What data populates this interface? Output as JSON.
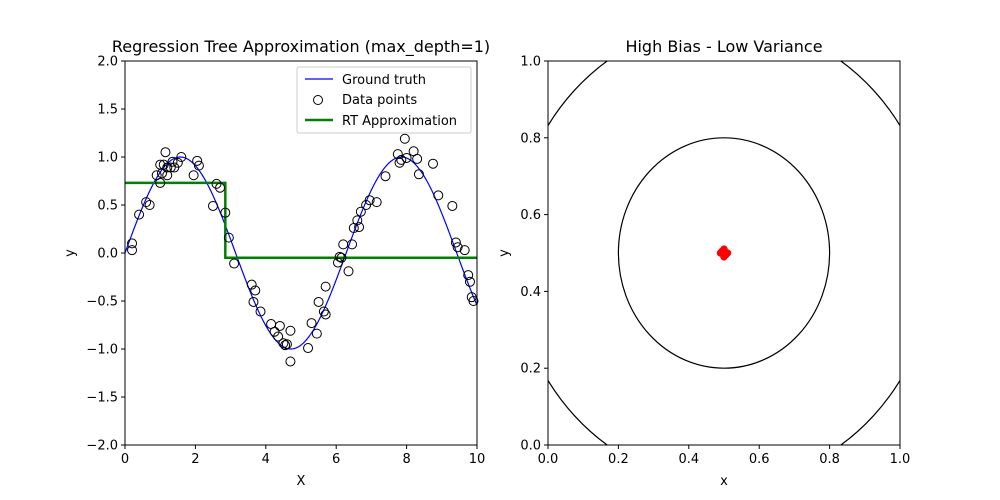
{
  "chart_data": [
    {
      "type": "line",
      "title": "Regression Tree Approximation (max_depth=1)",
      "xlabel": "X",
      "ylabel": "y",
      "xlim": [
        0,
        10
      ],
      "ylim": [
        -2.0,
        2.0
      ],
      "xticks": [
        "0",
        "2",
        "4",
        "6",
        "8",
        "10"
      ],
      "yticks": [
        "−2.0",
        "−1.5",
        "−1.0",
        "−0.5",
        "0.0",
        "0.5",
        "1.0",
        "1.5",
        "2.0"
      ],
      "grid": false,
      "legend": "top-right",
      "series": [
        {
          "name": "Ground truth",
          "kind": "line",
          "color": "#0000ff",
          "function": "sin(x)",
          "x_range": [
            0,
            10
          ]
        },
        {
          "name": "Data points",
          "kind": "scatter",
          "marker": "open-circle",
          "color": "#000000",
          "x": [
            0.2,
            0.2,
            0.4,
            0.6,
            0.7,
            0.9,
            1.0,
            1.0,
            1.05,
            1.1,
            1.15,
            1.2,
            1.2,
            1.3,
            1.35,
            1.4,
            1.5,
            1.6,
            1.95,
            2.05,
            2.1,
            2.5,
            2.6,
            2.7,
            2.85,
            2.95,
            3.1,
            3.6,
            3.65,
            3.7,
            3.85,
            4.15,
            4.25,
            4.35,
            4.4,
            4.5,
            4.55,
            4.6,
            4.7,
            4.7,
            5.2,
            5.3,
            5.45,
            5.5,
            5.65,
            5.7,
            5.7,
            6.05,
            6.1,
            6.15,
            6.2,
            6.35,
            6.45,
            6.5,
            6.6,
            6.65,
            6.7,
            6.85,
            6.95,
            7.15,
            7.4,
            7.75,
            7.8,
            7.85,
            7.95,
            8.0,
            8.2,
            8.3,
            8.35,
            8.75,
            8.9,
            9.3,
            9.4,
            9.45,
            9.65,
            9.75,
            9.8,
            9.85,
            9.9
          ],
          "y": [
            0.1,
            0.03,
            0.4,
            0.53,
            0.5,
            0.81,
            0.73,
            0.92,
            0.83,
            0.92,
            1.05,
            0.89,
            0.81,
            0.89,
            0.95,
            0.89,
            0.94,
            1.0,
            0.81,
            0.96,
            0.91,
            0.49,
            0.72,
            0.68,
            0.42,
            0.16,
            -0.11,
            -0.33,
            -0.51,
            -0.39,
            -0.61,
            -0.74,
            -0.82,
            -0.87,
            -0.76,
            -0.94,
            -0.96,
            -0.95,
            -0.81,
            -1.13,
            -0.99,
            -0.73,
            -0.84,
            -0.51,
            -0.61,
            -0.64,
            -0.35,
            -0.1,
            -0.04,
            -0.05,
            0.09,
            -0.19,
            0.09,
            0.26,
            0.34,
            0.27,
            0.43,
            0.5,
            0.55,
            0.53,
            0.8,
            1.03,
            0.94,
            0.97,
            1.19,
            0.99,
            1.06,
            0.98,
            0.82,
            0.93,
            0.6,
            0.49,
            0.11,
            0.06,
            0.03,
            -0.23,
            -0.3,
            -0.46,
            -0.5
          ]
        },
        {
          "name": "RT Approximation",
          "kind": "step",
          "color": "#008000",
          "x": [
            0,
            2.85,
            2.85,
            10
          ],
          "y": [
            0.73,
            0.73,
            -0.05,
            -0.05
          ]
        }
      ]
    },
    {
      "type": "scatter",
      "title": "High Bias - Low Variance",
      "xlabel": "x",
      "ylabel": "y",
      "xlim": [
        0.0,
        1.0
      ],
      "ylim": [
        0.0,
        1.0
      ],
      "xticks": [
        "0.0",
        "0.2",
        "0.4",
        "0.6",
        "0.8",
        "1.0"
      ],
      "yticks": [
        "0.0",
        "0.2",
        "0.4",
        "0.6",
        "0.8",
        "1.0"
      ],
      "grid": false,
      "circles": [
        {
          "center": [
            0.5,
            0.5
          ],
          "radius": 0.3,
          "color": "#000000"
        },
        {
          "center": [
            0.5,
            0.5
          ],
          "radius": 0.6,
          "color": "#000000"
        }
      ],
      "series": [
        {
          "kind": "scatter",
          "marker": "filled-circle",
          "color": "#ff0000",
          "x": [
            0.49,
            0.5,
            0.51,
            0.5,
            0.5,
            0.495,
            0.505
          ],
          "y": [
            0.5,
            0.5,
            0.5,
            0.49,
            0.51,
            0.505,
            0.495
          ]
        }
      ]
    }
  ]
}
